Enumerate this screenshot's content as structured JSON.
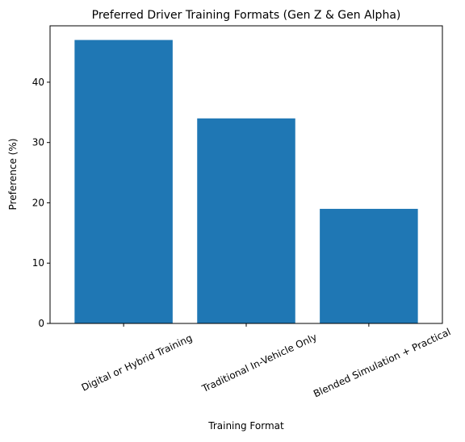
{
  "chart_data": {
    "type": "bar",
    "title": "Preferred Driver Training Formats (Gen Z & Gen Alpha)",
    "xlabel": "Training Format",
    "ylabel": "Preference (%)",
    "categories": [
      "Digital or Hybrid Training",
      "Traditional In-Vehicle Only",
      "Blended Simulation + Practical"
    ],
    "values": [
      47,
      34,
      19
    ],
    "ylim": [
      0,
      49.35
    ],
    "yticks": [
      0,
      10,
      20,
      30,
      40
    ],
    "bar_color": "#1f77b4",
    "grid": false,
    "legend": "none"
  }
}
